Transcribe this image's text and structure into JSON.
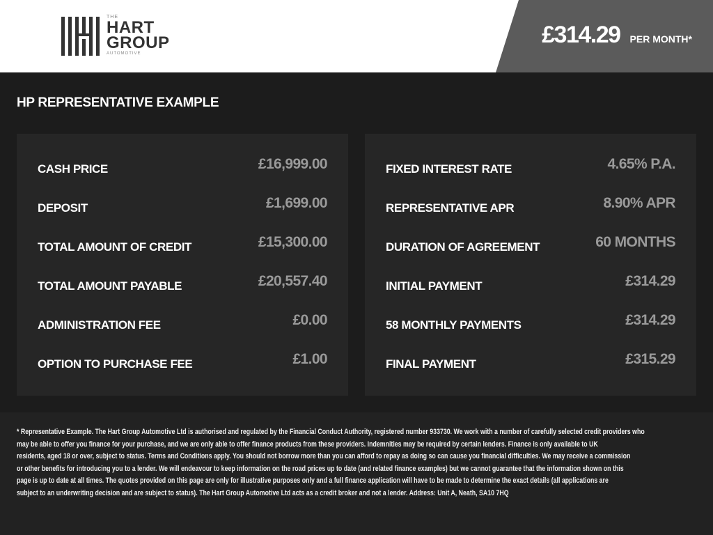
{
  "header": {
    "logo": {
      "the": "THE",
      "line1": "HART",
      "line2": "GROUP",
      "sub": "AUTOMOTIVE"
    },
    "price": "£314.29",
    "per_month": "PER MONTH*"
  },
  "title": "HP REPRESENTATIVE EXAMPLE",
  "left_panel": [
    {
      "label": "CASH PRICE",
      "value": "£16,999.00"
    },
    {
      "label": "DEPOSIT",
      "value": "£1,699.00"
    },
    {
      "label": "TOTAL AMOUNT OF CREDIT",
      "value": "£15,300.00"
    },
    {
      "label": "TOTAL AMOUNT PAYABLE",
      "value": "£20,557.40"
    },
    {
      "label": "ADMINISTRATION FEE",
      "value": "£0.00"
    },
    {
      "label": "OPTION TO PURCHASE FEE",
      "value": "£1.00"
    }
  ],
  "right_panel": [
    {
      "label": "FIXED INTEREST RATE",
      "value": "4.65% P.A."
    },
    {
      "label": "REPRESENTATIVE APR",
      "value": "8.90% APR"
    },
    {
      "label": "DURATION OF AGREEMENT",
      "value": "60 MONTHS"
    },
    {
      "label": "INITIAL PAYMENT",
      "value": "£314.29"
    },
    {
      "label": "58 MONTHLY PAYMENTS",
      "value": "£314.29"
    },
    {
      "label": "FINAL PAYMENT",
      "value": "£315.29"
    }
  ],
  "footer_lines": [
    "* Representative Example. The Hart Group Automotive Ltd is authorised and regulated by the Financial Conduct Authority, registered number 933730. We work with a number of carefully selected credit providers who",
    "may be able to offer you finance for your purchase, and we are only able to offer finance products from these providers. Indemnities may be required by certain lenders. Finance is only available to UK",
    "residents, aged 18 or over, subject to status. Terms and Conditions apply. You should not borrow more than you can afford to repay as doing so can cause you financial difficulties. We may receive a commission",
    "or other benefits for introducing you to a lender. We will endeavour to keep information on the road prices up to date (and related finance examples) but we cannot guarantee that the information shown on this",
    "page is up to date at all times. The quotes provided on this page are only for illustrative purposes only and a full finance application will have to be made to determine the exact details (all applications are",
    "subject to an underwriting decision and are subject to status). The Hart Group Automotive Ltd acts as a credit broker and not a lender. Address: Unit A, Neath, SA10 7HQ"
  ],
  "colors": {
    "header_bg": "#ffffff",
    "price_bg": "#5b5b5b",
    "body_bg": "#1c1c1c",
    "panel_bg": "#262626",
    "value_text": "#9a9a9a"
  }
}
